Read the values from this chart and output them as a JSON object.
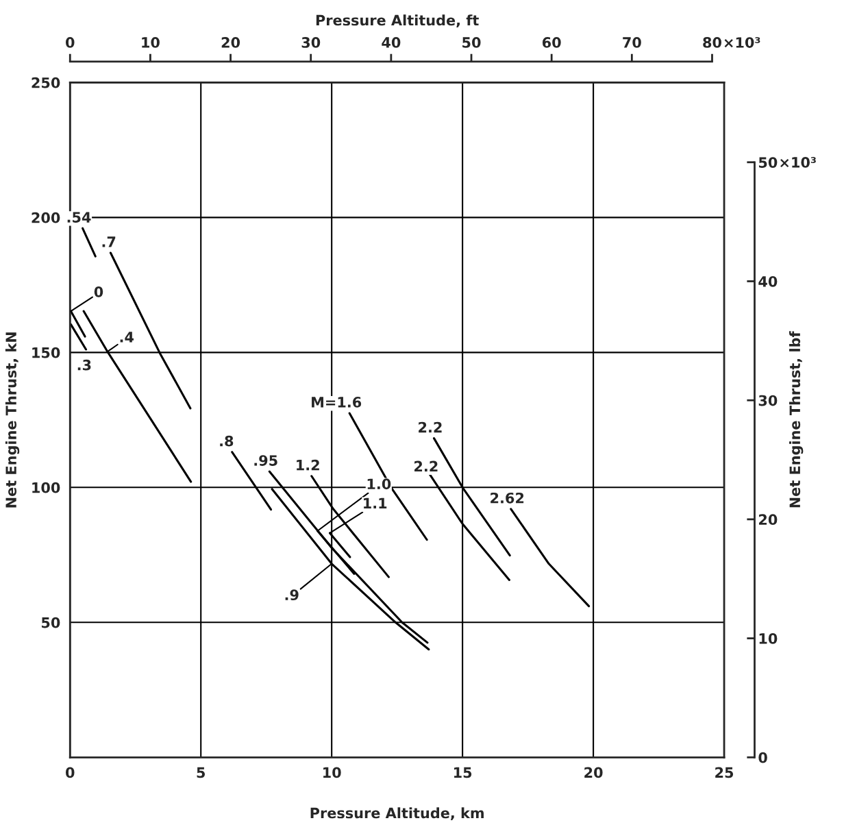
{
  "chart_data": {
    "type": "line",
    "xlabel": "Pressure Altitude, km",
    "ylabel": "Net Engine Thrust, kN",
    "x2label": "Pressure Altitude, ft",
    "y2label": "Net Engine Thrust, lbf",
    "xlim": [
      0,
      25
    ],
    "xticks": [
      0,
      5,
      10,
      15,
      20,
      25
    ],
    "ylim": [
      0,
      250
    ],
    "yticks": [
      50,
      100,
      150,
      200,
      250
    ],
    "x2lim": [
      0,
      81.5
    ],
    "x2ticks": [
      0,
      10,
      20,
      30,
      40,
      50,
      60,
      70,
      80
    ],
    "y2lim": [
      0,
      56.7
    ],
    "y2ticks": [
      0,
      10,
      20,
      30,
      40,
      50
    ],
    "annotations": [
      "×10³",
      "×10³"
    ],
    "grid": true,
    "legend": false,
    "marker": "none",
    "line_style": "solid",
    "series": [
      {
        "name": ".54",
        "color": "#000000",
        "x": [
          0.48,
          0.97
        ],
        "values": [
          196,
          185.6
        ]
      },
      {
        "name": ".7",
        "color": "#000000",
        "x": [
          1.55,
          3.43,
          4.6
        ],
        "values": [
          186.9,
          149.8,
          129.3
        ]
      },
      {
        "name": "0",
        "color": "#000000",
        "x": [
          0.03,
          0.57
        ],
        "values": [
          165.3,
          155.9
        ]
      },
      {
        "name": ".3",
        "color": "#000000",
        "x": [
          0.03,
          0.61
        ],
        "values": [
          160.4,
          151.1
        ]
      },
      {
        "name": ".4",
        "color": "#000000",
        "x": [
          0.52,
          1.43,
          4.62
        ],
        "values": [
          165.3,
          150.3,
          102.1
        ]
      },
      {
        "name": ".8",
        "color": "#000000",
        "x": [
          6.19,
          7.68
        ],
        "values": [
          113.1,
          91.8
        ]
      },
      {
        "name": ".95",
        "color": "#000000",
        "x": [
          7.62,
          10.0,
          12.69,
          13.66
        ],
        "values": [
          105.9,
          77.6,
          50,
          42.5
        ]
      },
      {
        "name": ".9",
        "color": "#000000",
        "x": [
          7.72,
          10.0,
          12.44,
          13.71
        ],
        "values": [
          99.4,
          71.7,
          50,
          40.0
        ]
      },
      {
        "name": "1.0",
        "color": "#000000",
        "x": [
          9.46,
          10.86
        ],
        "values": [
          83.9,
          68.0
        ]
      },
      {
        "name": "1.1",
        "color": "#000000",
        "x": [
          9.93,
          10.7
        ],
        "values": [
          83.1,
          74.2
        ]
      },
      {
        "name": "1.2",
        "color": "#000000",
        "x": [
          9.23,
          10.06,
          12.18
        ],
        "values": [
          104.2,
          92.0,
          66.8
        ]
      },
      {
        "name": "M=1.6",
        "color": "#000000",
        "x": [
          10.68,
          12.27,
          13.64
        ],
        "values": [
          127.5,
          100,
          80.6
        ]
      },
      {
        "name": "2.2",
        "color": "#000000",
        "x": [
          13.75,
          15.0,
          16.79
        ],
        "values": [
          104.8,
          86.5,
          65.7
        ]
      },
      {
        "name": "2.2",
        "color": "#000000",
        "x": [
          13.91,
          15.0,
          16.81
        ],
        "values": [
          118.2,
          100,
          74.8
        ]
      },
      {
        "name": "2.62",
        "color": "#000000",
        "x": [
          16.85,
          18.3,
          19.83
        ],
        "values": [
          92.0,
          71.7,
          56.0
        ]
      }
    ]
  }
}
